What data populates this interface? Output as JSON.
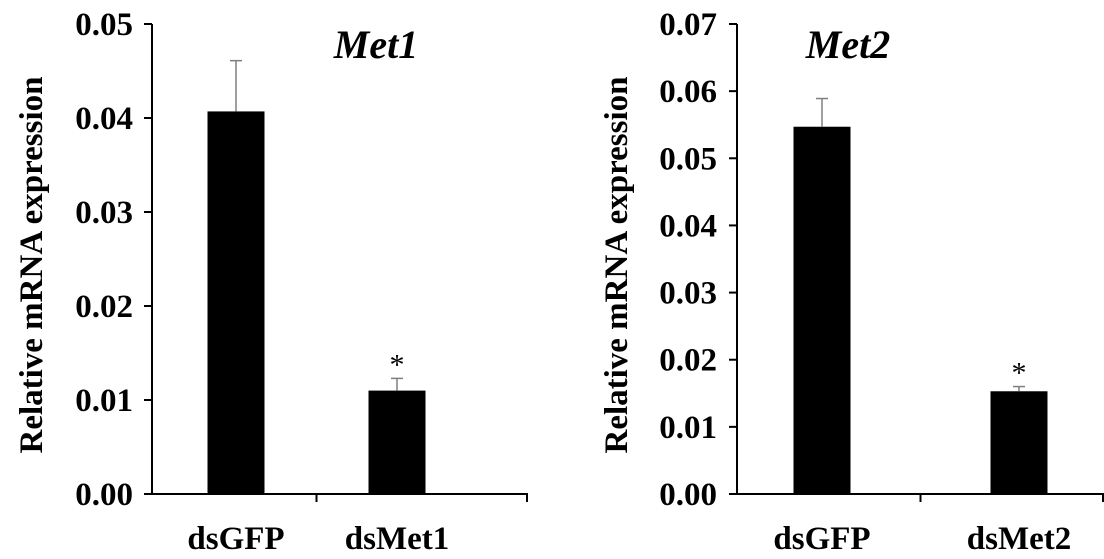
{
  "chart_data": [
    {
      "type": "bar",
      "title": "Met1",
      "xlabel": "",
      "ylabel": "Relative mRNA expression",
      "ylim": [
        0,
        0.05
      ],
      "yticks": [
        "0.00",
        "0.01",
        "0.02",
        "0.03",
        "0.04",
        "0.05"
      ],
      "categories": [
        "dsGFP",
        "dsMet1"
      ],
      "values": [
        0.0407,
        0.011
      ],
      "errors": [
        0.0054,
        0.0013
      ],
      "annotations": [
        "",
        "*"
      ],
      "bar_color": "#000000",
      "grid": false
    },
    {
      "type": "bar",
      "title": "Met2",
      "xlabel": "",
      "ylabel": "Relative mRNA expression",
      "ylim": [
        0,
        0.07
      ],
      "yticks": [
        "0.00",
        "0.01",
        "0.02",
        "0.03",
        "0.04",
        "0.05",
        "0.06",
        "0.07"
      ],
      "categories": [
        "dsGFP",
        "dsMet2"
      ],
      "values": [
        0.0547,
        0.0153
      ],
      "errors": [
        0.0042,
        0.0007
      ],
      "annotations": [
        "",
        "*"
      ],
      "bar_color": "#000000",
      "grid": false
    }
  ]
}
